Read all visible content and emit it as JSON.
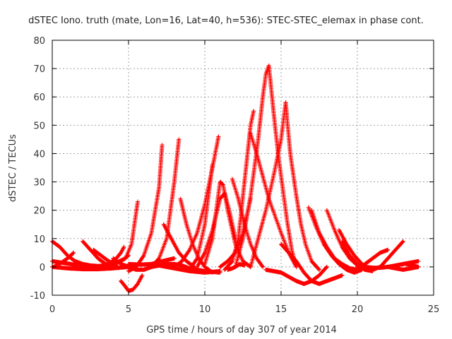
{
  "chart_data": {
    "type": "scatter",
    "title": "dSTEC Iono. truth (mate, Lon=16, Lat=40, h=536): STEC-STEC_elemax in phase cont.",
    "xlabel": "GPS time / hours of day 307 of year 2014",
    "ylabel": "dSTEC  / TECUs",
    "xlim": [
      0,
      25
    ],
    "ylim": [
      -10,
      80
    ],
    "x_ticks": [
      0,
      5,
      10,
      15,
      20,
      25
    ],
    "y_ticks": [
      -10,
      0,
      10,
      20,
      30,
      40,
      50,
      60,
      70,
      80
    ],
    "grid": true,
    "marker": "+",
    "color": "#ff0000",
    "arcs": [
      {
        "x": [
          0.0,
          0.5,
          1.0,
          1.5,
          2.0,
          2.5,
          3.0,
          3.5,
          4.0,
          4.5,
          5.0
        ],
        "y": [
          9,
          7,
          4,
          2,
          1,
          0.5,
          0.3,
          0.5,
          1,
          2,
          4
        ]
      },
      {
        "x": [
          0.0,
          0.6,
          1.2,
          1.8,
          2.4,
          3.0,
          3.6,
          4.2,
          4.8,
          5.2,
          5.6
        ],
        "y": [
          2,
          1.5,
          1,
          0.5,
          0.3,
          0.2,
          0.5,
          1.5,
          3,
          8,
          23
        ]
      },
      {
        "x": [
          0.1,
          0.6,
          1.0,
          1.4
        ],
        "y": [
          0,
          1.5,
          3,
          5
        ]
      },
      {
        "x": [
          0.0,
          1.0,
          2.0,
          3.0,
          4.0,
          5.0,
          5.5
        ],
        "y": [
          0,
          -0.5,
          -0.8,
          -0.8,
          -0.5,
          0,
          0.5
        ]
      },
      {
        "x": [
          2.0,
          2.5,
          3.0,
          3.5,
          4.0
        ],
        "y": [
          9,
          6,
          3,
          1,
          0
        ]
      },
      {
        "x": [
          2.7,
          3.2,
          3.7,
          4.2
        ],
        "y": [
          6,
          4,
          2,
          0.5
        ]
      },
      {
        "x": [
          3.2,
          3.7,
          4.2,
          4.5,
          4.7
        ],
        "y": [
          0,
          1,
          3,
          5,
          7
        ]
      },
      {
        "x": [
          4.0,
          4.5,
          5.0,
          5.5,
          6.0,
          6.5,
          7.0,
          7.5,
          8.0,
          8.5,
          9.0,
          10.0,
          11.0
        ],
        "y": [
          3,
          1,
          0,
          -1,
          -1,
          0,
          0.5,
          1,
          1,
          0.5,
          -0.5,
          -1.5,
          -2
        ]
      },
      {
        "x": [
          4.5,
          4.8,
          5.0,
          5.3,
          5.6,
          5.9
        ],
        "y": [
          -5,
          -7,
          -8.5,
          -8,
          -6,
          -3
        ]
      },
      {
        "x": [
          5.0,
          5.5,
          6.0,
          6.5,
          7.0,
          7.2
        ],
        "y": [
          -1.5,
          0,
          4,
          12,
          28,
          43
        ]
      },
      {
        "x": [
          5.0,
          5.8,
          6.5,
          7.2,
          8.0
        ],
        "y": [
          1,
          0.8,
          1,
          2,
          3
        ]
      },
      {
        "x": [
          6.0,
          6.5,
          7.0,
          7.5,
          8.0,
          8.3
        ],
        "y": [
          -1,
          0,
          3,
          10,
          30,
          45
        ]
      },
      {
        "x": [
          7.0,
          7.5,
          8.0,
          8.5,
          9.0,
          10.0,
          11.0
        ],
        "y": [
          0.5,
          0,
          -0.5,
          -1,
          -1.5,
          -2,
          -1.5
        ]
      },
      {
        "x": [
          7.3,
          7.8,
          8.3,
          8.8,
          9.3
        ],
        "y": [
          15,
          10,
          5,
          2,
          0
        ]
      },
      {
        "x": [
          8.4,
          8.8,
          9.2,
          9.6,
          10.0,
          10.5
        ],
        "y": [
          24,
          15,
          8,
          3,
          0,
          -2
        ]
      },
      {
        "x": [
          8.0,
          8.5,
          9.0,
          9.5,
          10.0,
          10.5,
          10.9
        ],
        "y": [
          0,
          2,
          6,
          12,
          22,
          35,
          46
        ]
      },
      {
        "x": [
          9.0,
          9.5,
          10.0,
          10.5
        ],
        "y": [
          -1,
          3,
          15,
          36
        ]
      },
      {
        "x": [
          10.0,
          10.5,
          10.8,
          11.0,
          11.2,
          11.5,
          12.0,
          12.5,
          13.0
        ],
        "y": [
          1,
          10,
          22,
          30,
          29,
          20,
          8,
          2,
          0
        ]
      },
      {
        "x": [
          9.5,
          10.0,
          10.5,
          11.0,
          11.3,
          11.6,
          12.0
        ],
        "y": [
          0,
          5,
          13,
          24,
          26,
          20,
          10
        ]
      },
      {
        "x": [
          11.0,
          11.5,
          12.0,
          12.5,
          13.0
        ],
        "y": [
          0,
          2,
          5,
          12,
          24
        ]
      },
      {
        "x": [
          11.5,
          11.8,
          12.0,
          12.3,
          12.6
        ],
        "y": [
          -1,
          -0.5,
          0,
          1,
          0.5
        ]
      },
      {
        "x": [
          11.8,
          12.2,
          12.6,
          13.0,
          13.4,
          13.8
        ],
        "y": [
          31,
          24,
          15,
          8,
          3,
          0
        ]
      },
      {
        "x": [
          11.3,
          11.8,
          12.2,
          12.5,
          12.8,
          13.0,
          13.2
        ],
        "y": [
          -1,
          2,
          10,
          25,
          40,
          50,
          55
        ]
      },
      {
        "x": [
          13.0,
          13.4,
          13.8,
          14.2,
          14.6,
          15.0,
          15.5,
          16.0
        ],
        "y": [
          47,
          40,
          32,
          24,
          18,
          12,
          5,
          0
        ]
      },
      {
        "x": [
          12.0,
          12.5,
          13.0,
          13.5,
          13.8,
          14.0,
          14.2
        ],
        "y": [
          0,
          10,
          25,
          45,
          60,
          68,
          71
        ]
      },
      {
        "x": [
          14.2,
          14.5,
          14.8,
          15.1,
          15.4,
          15.7,
          16.0
        ],
        "y": [
          71,
          55,
          40,
          28,
          16,
          6,
          0
        ]
      },
      {
        "x": [
          13.0,
          13.5,
          14.0,
          14.5,
          15.0,
          15.3
        ],
        "y": [
          0,
          10,
          20,
          32,
          45,
          58
        ]
      },
      {
        "x": [
          15.3,
          15.6,
          16.0,
          16.3,
          16.6,
          17.0,
          17.5
        ],
        "y": [
          58,
          40,
          25,
          15,
          8,
          2,
          -1
        ]
      },
      {
        "x": [
          14.0,
          14.5,
          15.0,
          15.5,
          16.0,
          16.5,
          17.0,
          17.5,
          18.0
        ],
        "y": [
          -1,
          -1.5,
          -2,
          -3.5,
          -5,
          -6,
          -5,
          -3,
          0
        ]
      },
      {
        "x": [
          15.0,
          15.5,
          16.0,
          16.5,
          17.0,
          17.5,
          18.0,
          18.5,
          19.0
        ],
        "y": [
          8,
          5,
          2,
          -2,
          -5,
          -6,
          -5,
          -4,
          -3
        ]
      },
      {
        "x": [
          16.8,
          17.3,
          17.8,
          18.3,
          18.8,
          19.3,
          19.8,
          20.3
        ],
        "y": [
          21,
          14,
          8,
          4,
          1,
          -1,
          -2,
          -1
        ]
      },
      {
        "x": [
          17.0,
          17.5,
          18.0,
          18.5,
          19.0,
          19.5,
          20.0
        ],
        "y": [
          20,
          12,
          7,
          3,
          1,
          -0.5,
          -1
        ]
      },
      {
        "x": [
          18.0,
          18.5,
          19.0,
          19.5,
          20.0,
          20.5,
          21.0
        ],
        "y": [
          20,
          13,
          7,
          3,
          0.5,
          -1,
          -1.5
        ]
      },
      {
        "x": [
          18.8,
          19.3,
          19.8,
          20.3,
          20.8
        ],
        "y": [
          13,
          8,
          4,
          1,
          -1
        ]
      },
      {
        "x": [
          19.0,
          19.5,
          20.0,
          20.5,
          21.0,
          21.5,
          22.0,
          22.5,
          23.0
        ],
        "y": [
          9,
          4,
          1,
          -1,
          -1,
          0,
          3,
          6,
          9
        ]
      },
      {
        "x": [
          20.0,
          20.5,
          21.0,
          21.5,
          22.0
        ],
        "y": [
          -1,
          1,
          3,
          5,
          6
        ]
      },
      {
        "x": [
          20.0,
          20.5,
          21.0,
          21.5,
          22.0,
          22.5,
          23.0,
          23.5,
          24.0
        ],
        "y": [
          0,
          0,
          -0.3,
          -0.3,
          0,
          0.5,
          1,
          1.5,
          2
        ]
      },
      {
        "x": [
          22.0,
          22.5,
          23.0,
          23.5,
          24.0
        ],
        "y": [
          0,
          -0.5,
          -1,
          -0.5,
          0
        ]
      },
      {
        "x": [
          23.2,
          23.6,
          24.0
        ],
        "y": [
          1,
          0.5,
          0
        ]
      }
    ]
  }
}
